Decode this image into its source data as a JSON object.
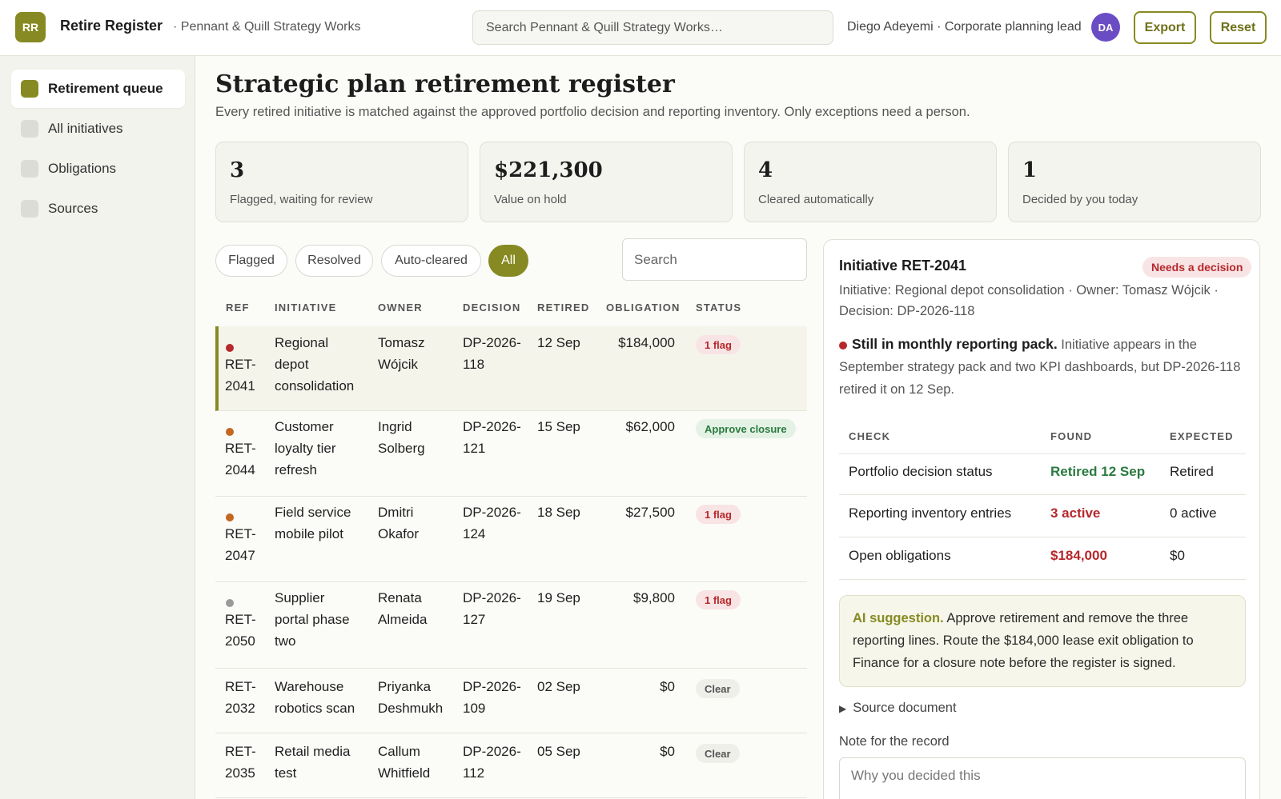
{
  "header": {
    "logo_initials": "RR",
    "app_title": "Retire Register",
    "org": "· Pennant & Quill Strategy Works",
    "search_placeholder": "Search Pennant & Quill Strategy Works…",
    "user": "Diego Adeyemi · Corporate planning lead",
    "avatar_initials": "DA",
    "export_label": "Export",
    "reset_label": "Reset"
  },
  "sidebar": {
    "items": [
      {
        "label": "Retirement queue",
        "active": true
      },
      {
        "label": "All initiatives",
        "active": false
      },
      {
        "label": "Obligations",
        "active": false
      },
      {
        "label": "Sources",
        "active": false
      }
    ]
  },
  "main": {
    "title": "Strategic plan retirement register",
    "subtitle": "Every retired initiative is matched against the approved portfolio decision and reporting inventory. Only exceptions need a person."
  },
  "kpis": [
    {
      "value": "3",
      "label": "Flagged, waiting for review"
    },
    {
      "value": "$221,300",
      "label": "Value on hold"
    },
    {
      "value": "4",
      "label": "Cleared automatically"
    },
    {
      "value": "1",
      "label": "Decided by you today"
    }
  ],
  "filters": {
    "chips": [
      "Flagged",
      "Resolved",
      "Auto-cleared",
      "All"
    ],
    "active": "All",
    "search_placeholder": "Search"
  },
  "table": {
    "headers": [
      "REF",
      "INITIATIVE",
      "OWNER",
      "DECISION",
      "RETIRED",
      "OBLIGATION",
      "STATUS"
    ],
    "rows": [
      {
        "ref_a": "RET-",
        "ref_b": "2041",
        "initiative": [
          "Regional",
          "depot",
          "consolidation"
        ],
        "owner": [
          "Tomasz",
          "Wójcik"
        ],
        "decision": [
          "DP-2026-",
          "118"
        ],
        "retired": "12 Sep",
        "obligation": "$184,000",
        "status": "1 flag",
        "dot": "#b5282c"
      },
      {
        "ref_a": "RET-",
        "ref_b": "2044",
        "initiative": [
          "Customer",
          "loyalty tier",
          "refresh"
        ],
        "owner": [
          "Ingrid",
          "Solberg"
        ],
        "decision": [
          "DP-2026-",
          "121"
        ],
        "retired": "15 Sep",
        "obligation": "$62,000",
        "status": "Approve closure",
        "dot": "#c4671f"
      },
      {
        "ref_a": "RET-",
        "ref_b": "2047",
        "initiative": [
          "Field service",
          "mobile pilot"
        ],
        "owner": [
          "Dmitri",
          "Okafor"
        ],
        "decision": [
          "DP-2026-",
          "124"
        ],
        "retired": "18 Sep",
        "obligation": "$27,500",
        "status": "1 flag",
        "dot": "#c4671f"
      },
      {
        "ref_a": "RET-",
        "ref_b": "2050",
        "initiative": [
          "Supplier",
          "portal phase",
          "two"
        ],
        "owner": [
          "Renata",
          "Almeida"
        ],
        "decision": [
          "DP-2026-",
          "127"
        ],
        "retired": "19 Sep",
        "obligation": "$9,800",
        "status": "1 flag",
        "dot": "#9a9a9a"
      },
      {
        "ref_a": "RET-",
        "ref_b": "2032",
        "initiative": [
          "Warehouse",
          "robotics scan"
        ],
        "owner": [
          "Priyanka",
          "Deshmukh"
        ],
        "decision": [
          "DP-2026-",
          "109"
        ],
        "retired": "02 Sep",
        "obligation": "$0",
        "status": "Clear"
      },
      {
        "ref_a": "RET-",
        "ref_b": "2035",
        "initiative": [
          "Retail media",
          "test"
        ],
        "owner": [
          "Callum",
          "Whitfield"
        ],
        "decision": [
          "DP-2026-",
          "112"
        ],
        "retired": "05 Sep",
        "obligation": "$0",
        "status": "Clear"
      }
    ]
  },
  "detail": {
    "title": "Initiative RET-2041",
    "badge": "Needs a decision",
    "meta": "Initiative: Regional depot consolidation · Owner: Tomasz Wójcik · Decision: DP-2026-118",
    "finding_head": "Still in monthly reporting pack.",
    "finding_body": " Initiative appears in the September strategy pack and two KPI dashboards, but DP-2026-118 retired it on 12 Sep.",
    "check_headers": [
      "CHECK",
      "FOUND",
      "EXPECTED"
    ],
    "checks": [
      {
        "check": "Portfolio decision status",
        "found": "Retired 12 Sep",
        "expected": "Retired",
        "tone": "green"
      },
      {
        "check": "Reporting inventory entries",
        "found": "3 active",
        "expected": "0 active",
        "tone": "red"
      },
      {
        "check": "Open obligations",
        "found": "$184,000",
        "expected": "$0",
        "tone": "red"
      }
    ],
    "ai_label": "AI suggestion.",
    "ai_text": " Approve retirement and remove the three reporting lines. Route the $184,000 lease exit obligation to Finance for a closure note before the register is signed.",
    "source_label": "Source document",
    "note_label": "Note for the record",
    "note_placeholder": "Why you decided this"
  }
}
